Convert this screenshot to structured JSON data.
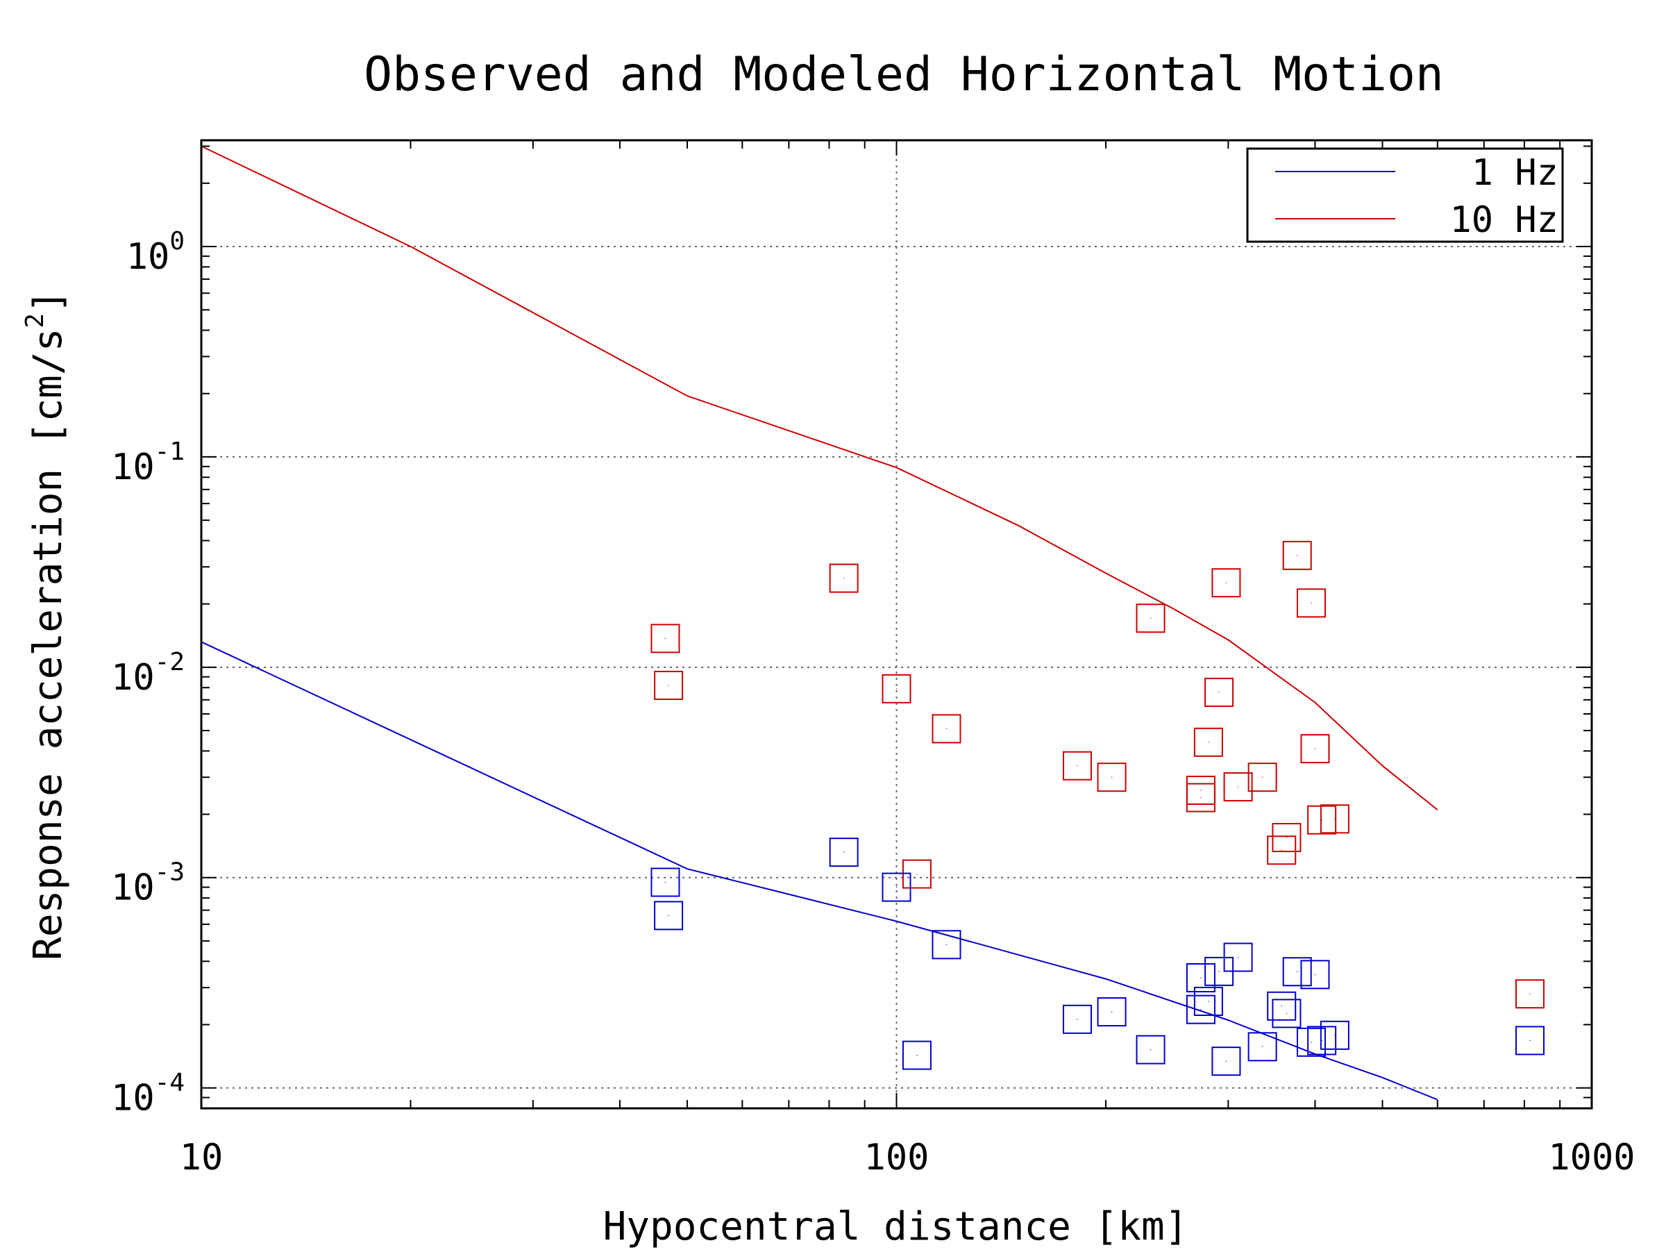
{
  "chart_data": {
    "type": "scatter",
    "title": "Observed and Modeled Horizontal Motion",
    "xlabel": "Hypocentral distance [km]",
    "ylabel": "Response acceleration [cm/s2]",
    "ylabel_main": "Response acceleration [cm/s",
    "ylabel_sup": "2",
    "ylabel_end": "]",
    "x_scale": "log",
    "y_scale": "log",
    "xlim": [
      10,
      1000
    ],
    "ylim": [
      8e-05,
      3.2
    ],
    "grid": true,
    "legend_position": "top-right",
    "x_ticks": [
      {
        "value": 10,
        "label": "10"
      },
      {
        "value": 100,
        "label": "100"
      },
      {
        "value": 1000,
        "label": "1000"
      }
    ],
    "y_ticks": [
      {
        "value": 1,
        "base": "10",
        "exp": "0"
      },
      {
        "value": 0.1,
        "base": "10",
        "exp": "-1"
      },
      {
        "value": 0.01,
        "base": "10",
        "exp": "-2"
      },
      {
        "value": 0.001,
        "base": "10",
        "exp": "-3"
      },
      {
        "value": 0.0001,
        "base": "10",
        "exp": "-4"
      }
    ],
    "series": [
      {
        "name": "1 Hz",
        "color": "#0000cc",
        "kind": "line",
        "x": [
          10,
          50,
          100,
          200,
          300,
          400,
          500,
          600
        ],
        "y": [
          0.0132,
          0.0011,
          0.00062,
          0.00033,
          0.00021,
          0.000145,
          0.000112,
          8.8e-05
        ]
      },
      {
        "name": "10 Hz",
        "color": "#cc0000",
        "kind": "line",
        "x": [
          10,
          20,
          50,
          100,
          150,
          200,
          250,
          300,
          400,
          500,
          600
        ],
        "y": [
          3.0,
          1.0,
          0.195,
          0.089,
          0.047,
          0.028,
          0.019,
          0.0135,
          0.0068,
          0.0034,
          0.0021
        ]
      },
      {
        "name": "10 Hz observed",
        "color": "#cc0000",
        "kind": "marker",
        "x": [
          46.5,
          47.0,
          84,
          100,
          107,
          118,
          182,
          204,
          232,
          274,
          274,
          281,
          291,
          298,
          310,
          336,
          358,
          364,
          377,
          395,
          400,
          409,
          427,
          815
        ],
        "y": [
          0.0137,
          0.0082,
          0.0265,
          0.0079,
          0.00104,
          0.0051,
          0.0034,
          0.003,
          0.0171,
          0.0026,
          0.0024,
          0.0044,
          0.0076,
          0.0252,
          0.0027,
          0.003,
          0.00135,
          0.00155,
          0.034,
          0.0202,
          0.0041,
          0.00188,
          0.0019,
          0.00028
        ]
      },
      {
        "name": "1 Hz observed",
        "color": "#0000cc",
        "kind": "marker",
        "x": [
          46.5,
          47.0,
          84,
          100,
          107,
          118,
          182,
          204,
          232,
          274,
          274,
          281,
          291,
          298,
          310,
          336,
          358,
          364,
          377,
          395,
          400,
          409,
          427,
          815
        ],
        "y": [
          0.00095,
          0.00066,
          0.00132,
          0.0009,
          0.000143,
          0.00048,
          0.000212,
          0.00023,
          0.000152,
          0.000334,
          0.000236,
          0.000258,
          0.000358,
          0.000134,
          0.000418,
          0.000157,
          0.000245,
          0.000226,
          0.000357,
          0.000165,
          0.000346,
          0.000168,
          0.000178,
          0.000168
        ]
      }
    ],
    "legend": [
      {
        "label": "1 Hz",
        "color": "#0000cc"
      },
      {
        "label": "10 Hz",
        "color": "#cc0000"
      }
    ]
  }
}
